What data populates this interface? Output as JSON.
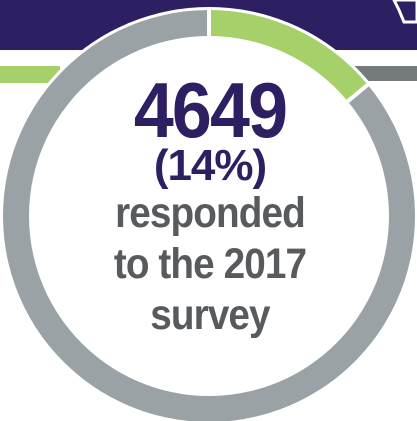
{
  "colors": {
    "navy": "#2e1f62",
    "green": "#a6d06a",
    "gray": "#9ba2a6",
    "gray_dark": "#757a7d",
    "text_gray": "#585b5e"
  },
  "headline": {
    "number": "4649",
    "percent": "(14%)",
    "caption_lines": [
      "responded",
      "to the 2017",
      "survey"
    ]
  },
  "chart_data": {
    "type": "pie",
    "style": "donut",
    "slices": [
      {
        "value": 14,
        "color": "#a6d06a"
      },
      {
        "value": 86,
        "color": "#9ba2a6"
      }
    ],
    "unit": "%"
  }
}
